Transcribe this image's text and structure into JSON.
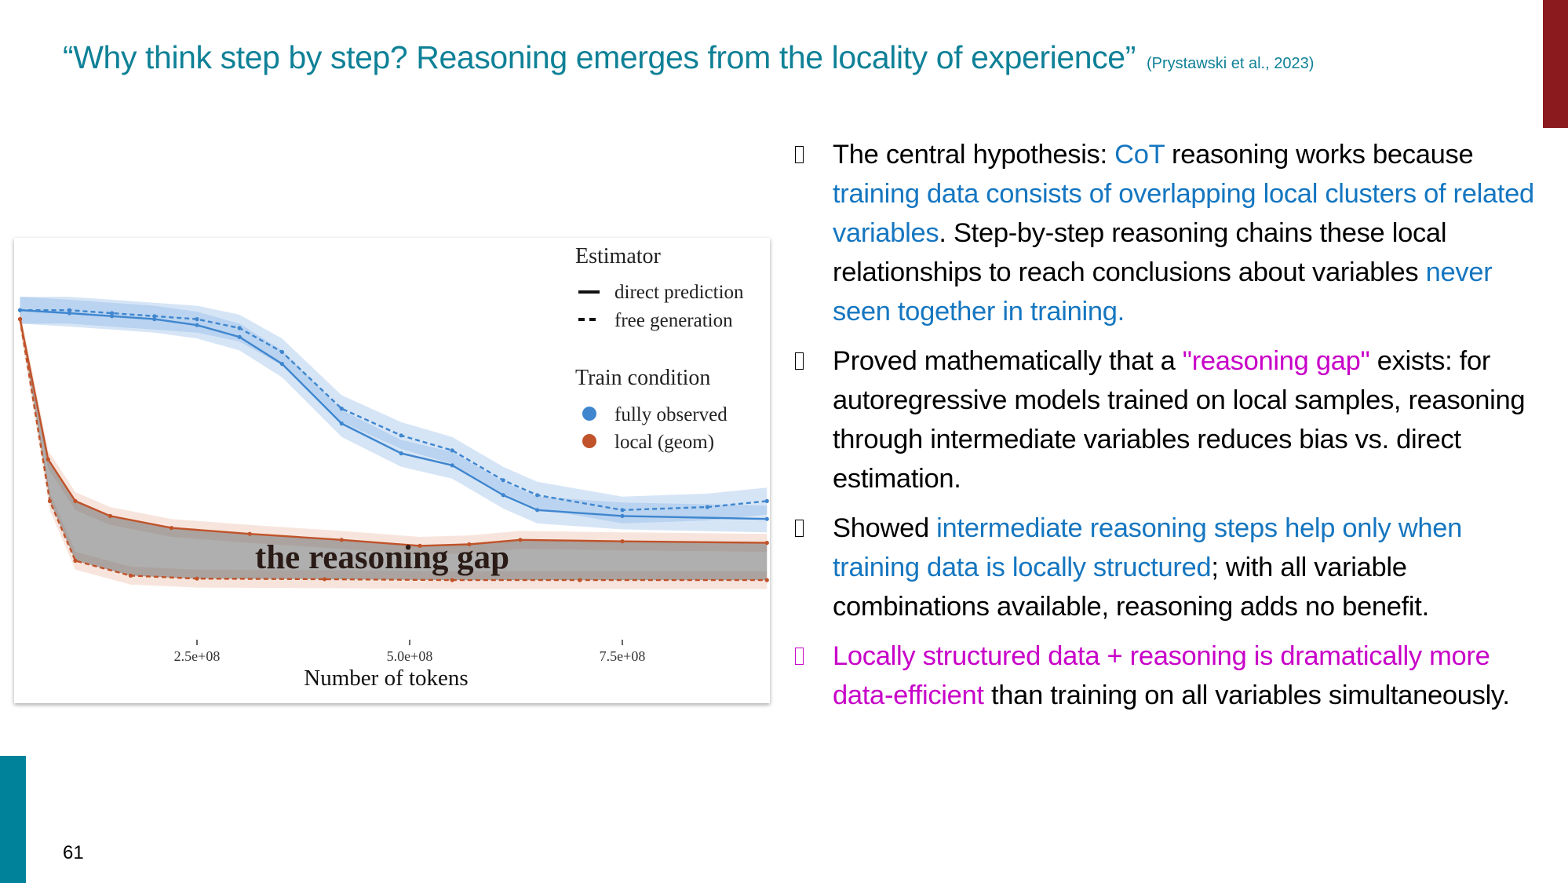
{
  "slide": {
    "title": "“Why think step by step? Reasoning emerges from the locality of experience”",
    "citation": "(Prystawski et al., 2023)",
    "page_number": "61",
    "colors": {
      "title": "#0f8197",
      "accent_red": "#8b1a1e",
      "accent_teal": "#00829a",
      "highlight_blue": "#1576c0",
      "highlight_pink": "#c800c8"
    }
  },
  "bullets": [
    {
      "icon": "missing-glyph-box",
      "segments": [
        {
          "text": "The central hypothesis: ",
          "color": "black"
        },
        {
          "text": "CoT",
          "color": "blue"
        },
        {
          "text": " reasoning works because ",
          "color": "black"
        },
        {
          "text": "training data consists of overlapping local clusters of related variables",
          "color": "blue"
        },
        {
          "text": ". Step-by-step reasoning chains these local relationships to reach conclusions about variables ",
          "color": "black"
        },
        {
          "text": "never seen together in training.",
          "color": "blue"
        }
      ]
    },
    {
      "icon": "missing-glyph-box",
      "segments": [
        {
          "text": "Proved mathematically that a ",
          "color": "black"
        },
        {
          "text": "\"reasoning gap\"",
          "color": "pink"
        },
        {
          "text": " exists: for autoregressive models trained on local samples, reasoning through intermediate variables reduces bias vs. direct estimation.",
          "color": "black"
        }
      ]
    },
    {
      "icon": "missing-glyph-box",
      "segments": [
        {
          "text": "Showed ",
          "color": "black"
        },
        {
          "text": "intermediate reasoning steps help only when training data is locally structured",
          "color": "blue"
        },
        {
          "text": "; with all variable combinations available, reasoning adds no benefit.",
          "color": "black"
        }
      ]
    },
    {
      "icon": "missing-glyph-box",
      "pink": true,
      "segments": [
        {
          "text": "Locally structured data + reasoning is dramatically more data-efficient",
          "color": "pink"
        },
        {
          "text": " than training on all variables simultaneously.",
          "color": "black"
        }
      ]
    }
  ],
  "chart_data": {
    "type": "line",
    "xlabel": "Number of tokens",
    "xticks": [
      {
        "value": 250000000.0,
        "label": "2.5e+08"
      },
      {
        "value": 500000000.0,
        "label": "5.0e+08"
      },
      {
        "value": 750000000.0,
        "label": "7.5e+08"
      }
    ],
    "xlim": [
      42000000.0,
      920000000.0
    ],
    "y_axis_shown": false,
    "grid": false,
    "legend_placement": "top-right",
    "annotation": "the reasoning gap",
    "legend": {
      "estimator_title": "Estimator",
      "estimators": [
        {
          "name": "direct prediction",
          "style": "solid"
        },
        {
          "name": "free generation",
          "style": "dashed"
        }
      ],
      "condition_title": "Train condition",
      "conditions": [
        {
          "name": "fully observed",
          "color": "#3f86cf"
        },
        {
          "name": "local (geom)",
          "color": "#c0532a"
        }
      ]
    },
    "series": [
      {
        "condition": "fully observed",
        "estimator": "direct prediction",
        "color": "#3f86cf",
        "style": "solid",
        "x": [
          42000000.0,
          100000000.0,
          150000000.0,
          200000000.0,
          250000000.0,
          300000000.0,
          350000000.0,
          420000000.0,
          490000000.0,
          550000000.0,
          610000000.0,
          650000000.0,
          750000000.0,
          920000000.0
        ],
        "y": [
          0.96,
          0.95,
          0.94,
          0.93,
          0.91,
          0.87,
          0.78,
          0.58,
          0.48,
          0.44,
          0.34,
          0.29,
          0.27,
          0.26
        ]
      },
      {
        "condition": "fully observed",
        "estimator": "free generation",
        "color": "#3f86cf",
        "style": "dashed",
        "x": [
          42000000.0,
          100000000.0,
          150000000.0,
          200000000.0,
          250000000.0,
          300000000.0,
          350000000.0,
          420000000.0,
          490000000.0,
          550000000.0,
          610000000.0,
          650000000.0,
          750000000.0,
          850000000.0,
          920000000.0
        ],
        "y": [
          0.96,
          0.96,
          0.95,
          0.94,
          0.93,
          0.9,
          0.82,
          0.63,
          0.54,
          0.49,
          0.39,
          0.34,
          0.29,
          0.3,
          0.32
        ]
      },
      {
        "condition": "local (geom)",
        "estimator": "direct prediction",
        "color": "#c0532a",
        "style": "solid",
        "x": [
          42000000.0,
          75000000.0,
          107000000.0,
          148000000.0,
          220000000.0,
          312000000.0,
          420000000.0,
          512000000.0,
          570000000.0,
          630000000.0,
          750000000.0,
          920000000.0
        ],
        "y": [
          0.93,
          0.46,
          0.32,
          0.27,
          0.23,
          0.21,
          0.19,
          0.17,
          0.175,
          0.19,
          0.185,
          0.18
        ]
      },
      {
        "condition": "local (geom)",
        "estimator": "free generation",
        "color": "#c0532a",
        "style": "dashed",
        "x": [
          42000000.0,
          77000000.0,
          107000000.0,
          172000000.0,
          250000000.0,
          400000000.0,
          550000000.0,
          700000000.0,
          920000000.0
        ],
        "y": [
          0.93,
          0.32,
          0.12,
          0.07,
          0.06,
          0.058,
          0.055,
          0.055,
          0.055
        ]
      }
    ]
  }
}
